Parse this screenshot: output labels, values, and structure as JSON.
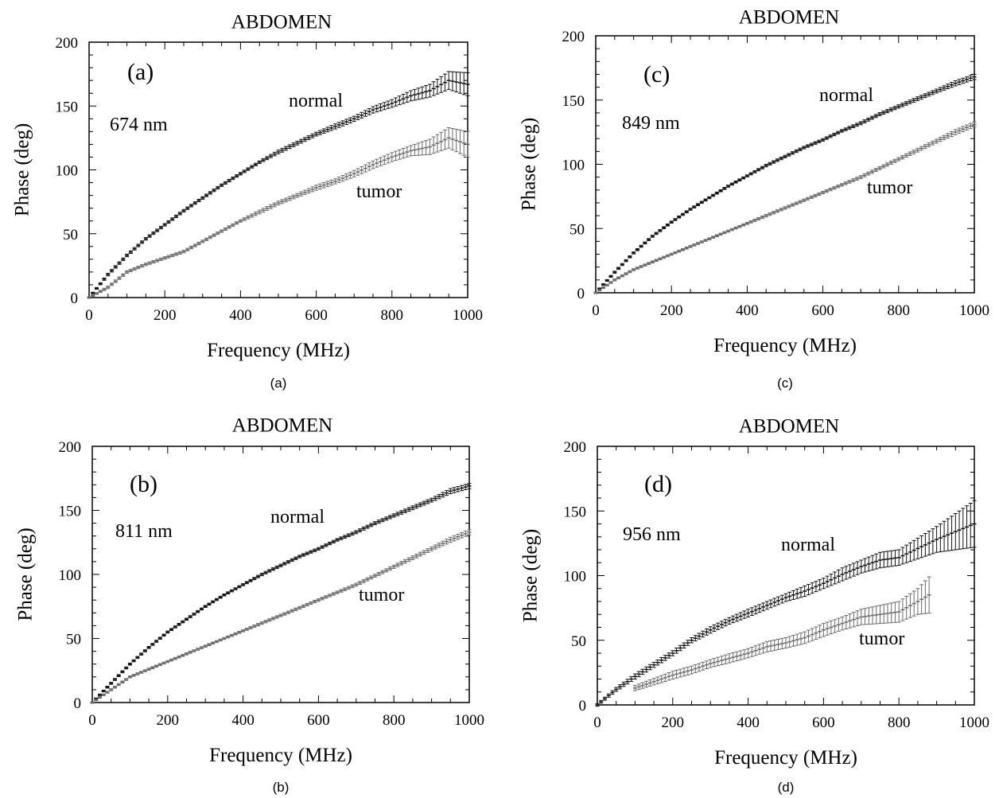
{
  "chart_data": [
    {
      "type": "scatter",
      "title": "ABDOMEN",
      "panel_tag": "(a)",
      "caption": "(a)",
      "wavelength": "674 nm",
      "xlabel": "Frequency (MHz)",
      "ylabel": "Phase (deg)",
      "xlim": [
        0,
        1000
      ],
      "ylim": [
        0,
        200
      ],
      "xticks": [
        0,
        200,
        400,
        600,
        800,
        1000
      ],
      "yticks": [
        0,
        50,
        100,
        150,
        200
      ],
      "grid": false,
      "error_bars": true,
      "series": [
        {
          "name": "normal",
          "x": [
            0,
            50,
            100,
            150,
            200,
            250,
            300,
            350,
            400,
            450,
            500,
            550,
            600,
            650,
            700,
            750,
            800,
            850,
            900,
            950,
            1000
          ],
          "y": [
            0,
            18,
            33,
            46,
            57,
            68,
            78,
            88,
            97,
            106,
            114,
            121,
            128,
            134,
            140,
            147,
            152,
            158,
            162,
            170,
            167
          ],
          "err": [
            0.5,
            1,
            1,
            1,
            1,
            1,
            1,
            1,
            1,
            1,
            1.5,
            1.5,
            1.5,
            2,
            2,
            2.5,
            3,
            4,
            5,
            7,
            9
          ]
        },
        {
          "name": "tumor",
          "x": [
            0,
            50,
            100,
            150,
            200,
            250,
            300,
            350,
            400,
            450,
            500,
            550,
            600,
            650,
            700,
            750,
            800,
            850,
            900,
            950,
            1000
          ],
          "y": [
            0,
            8,
            20,
            26,
            31,
            36,
            44,
            52,
            60,
            67,
            74,
            80,
            86,
            91,
            97,
            104,
            110,
            115,
            118,
            125,
            120
          ],
          "err": [
            0.5,
            1,
            1,
            1,
            1,
            1,
            1,
            1,
            1,
            1.5,
            1.5,
            1.5,
            2,
            2,
            2.5,
            3,
            3.5,
            4,
            6,
            8,
            10
          ]
        }
      ]
    },
    {
      "type": "scatter",
      "title": "ABDOMEN",
      "panel_tag": "(c)",
      "caption": "(c)",
      "wavelength": "849 nm",
      "xlabel": "Frequency (MHz)",
      "ylabel": "Phase (deg)",
      "xlim": [
        0,
        1000
      ],
      "ylim": [
        0,
        200
      ],
      "xticks": [
        0,
        200,
        400,
        600,
        800,
        1000
      ],
      "yticks": [
        0,
        50,
        100,
        150,
        200
      ],
      "grid": false,
      "error_bars": true,
      "series": [
        {
          "name": "normal",
          "x": [
            0,
            50,
            100,
            150,
            200,
            250,
            300,
            350,
            400,
            450,
            500,
            550,
            600,
            650,
            700,
            750,
            800,
            850,
            900,
            950,
            1000
          ],
          "y": [
            0,
            16,
            31,
            44,
            55,
            65,
            74,
            83,
            91,
            99,
            106,
            113,
            119,
            126,
            132,
            139,
            145,
            151,
            157,
            163,
            168
          ],
          "err": [
            0.5,
            0.8,
            0.8,
            0.8,
            0.8,
            0.8,
            0.8,
            0.8,
            0.8,
            1,
            1,
            1,
            1,
            1,
            1.2,
            1.2,
            1.3,
            1.5,
            1.5,
            2,
            2
          ]
        },
        {
          "name": "tumor",
          "x": [
            0,
            50,
            100,
            150,
            200,
            250,
            300,
            350,
            400,
            450,
            500,
            550,
            600,
            650,
            700,
            750,
            800,
            850,
            900,
            950,
            1000
          ],
          "y": [
            0,
            10,
            18,
            24,
            30,
            36,
            42,
            48,
            54,
            60,
            66,
            72,
            78,
            84,
            90,
            97,
            104,
            111,
            118,
            125,
            131
          ],
          "err": [
            0.5,
            0.8,
            0.8,
            0.8,
            0.8,
            0.8,
            0.8,
            0.8,
            0.8,
            1,
            1,
            1,
            1,
            1,
            1.2,
            1.2,
            1.3,
            1.5,
            1.5,
            2,
            2
          ]
        }
      ]
    },
    {
      "type": "scatter",
      "title": "ABDOMEN",
      "panel_tag": "(b)",
      "caption": "(b)",
      "wavelength": "811 nm",
      "xlabel": "Frequency (MHz)",
      "ylabel": "Phase (deg)",
      "xlim": [
        0,
        1000
      ],
      "ylim": [
        0,
        200
      ],
      "xticks": [
        0,
        200,
        400,
        600,
        800,
        1000
      ],
      "yticks": [
        0,
        50,
        100,
        150,
        200
      ],
      "grid": false,
      "error_bars": true,
      "series": [
        {
          "name": "normal",
          "x": [
            0,
            50,
            100,
            150,
            200,
            250,
            300,
            350,
            400,
            450,
            500,
            550,
            600,
            650,
            700,
            750,
            800,
            850,
            900,
            950,
            1000
          ],
          "y": [
            0,
            15,
            30,
            43,
            55,
            65,
            75,
            84,
            92,
            100,
            107,
            114,
            120,
            127,
            133,
            140,
            146,
            152,
            158,
            165,
            169
          ],
          "err": [
            0.5,
            0.8,
            0.8,
            0.8,
            0.8,
            0.8,
            0.8,
            0.8,
            0.8,
            1,
            1,
            1,
            1,
            1,
            1.2,
            1.2,
            1.3,
            1.5,
            1.5,
            2,
            2
          ]
        },
        {
          "name": "tumor",
          "x": [
            0,
            50,
            100,
            150,
            200,
            250,
            300,
            350,
            400,
            450,
            500,
            550,
            600,
            650,
            700,
            750,
            800,
            850,
            900,
            950,
            1000
          ],
          "y": [
            0,
            10,
            20,
            26,
            32,
            38,
            44,
            50,
            56,
            62,
            68,
            74,
            80,
            86,
            92,
            99,
            106,
            113,
            120,
            127,
            133
          ],
          "err": [
            0.5,
            0.8,
            0.8,
            0.8,
            0.8,
            0.8,
            0.8,
            0.8,
            0.8,
            1,
            1,
            1,
            1,
            1,
            1.2,
            1.2,
            1.3,
            1.5,
            1.5,
            2,
            2
          ]
        }
      ]
    },
    {
      "type": "scatter",
      "title": "ABDOMEN",
      "panel_tag": "(d)",
      "caption": "(d)",
      "wavelength": "956 nm",
      "xlabel": "Frequency (MHz)",
      "ylabel": "Phase (deg)",
      "xlim": [
        0,
        1000
      ],
      "ylim": [
        0,
        200
      ],
      "xticks": [
        0,
        200,
        400,
        600,
        800,
        1000
      ],
      "yticks": [
        0,
        50,
        100,
        150,
        200
      ],
      "grid": false,
      "error_bars": true,
      "series": [
        {
          "name": "normal",
          "x": [
            0,
            50,
            100,
            150,
            200,
            250,
            300,
            350,
            400,
            450,
            500,
            550,
            600,
            650,
            700,
            750,
            800,
            850,
            900,
            950,
            1000
          ],
          "y": [
            0,
            12,
            22,
            31,
            40,
            50,
            58,
            65,
            71,
            77,
            83,
            88,
            94,
            101,
            107,
            112,
            114,
            121,
            128,
            134,
            140
          ],
          "err": [
            1,
            1.5,
            2,
            2,
            2,
            2,
            2.5,
            2.5,
            3,
            3,
            3,
            4,
            4,
            5,
            5,
            6,
            6,
            8,
            10,
            14,
            18
          ]
        },
        {
          "name": "tumor",
          "x": [
            100,
            150,
            200,
            250,
            300,
            350,
            400,
            450,
            500,
            550,
            600,
            650,
            700,
            750,
            800,
            850,
            880
          ],
          "y": [
            13,
            18,
            23,
            27,
            32,
            36,
            40,
            45,
            48,
            52,
            58,
            63,
            68,
            70,
            72,
            80,
            85
          ],
          "err": [
            2,
            2.5,
            3,
            3,
            3,
            3.5,
            3.5,
            4,
            4,
            4.5,
            5,
            5,
            6,
            7,
            8,
            10,
            14
          ]
        }
      ]
    }
  ]
}
